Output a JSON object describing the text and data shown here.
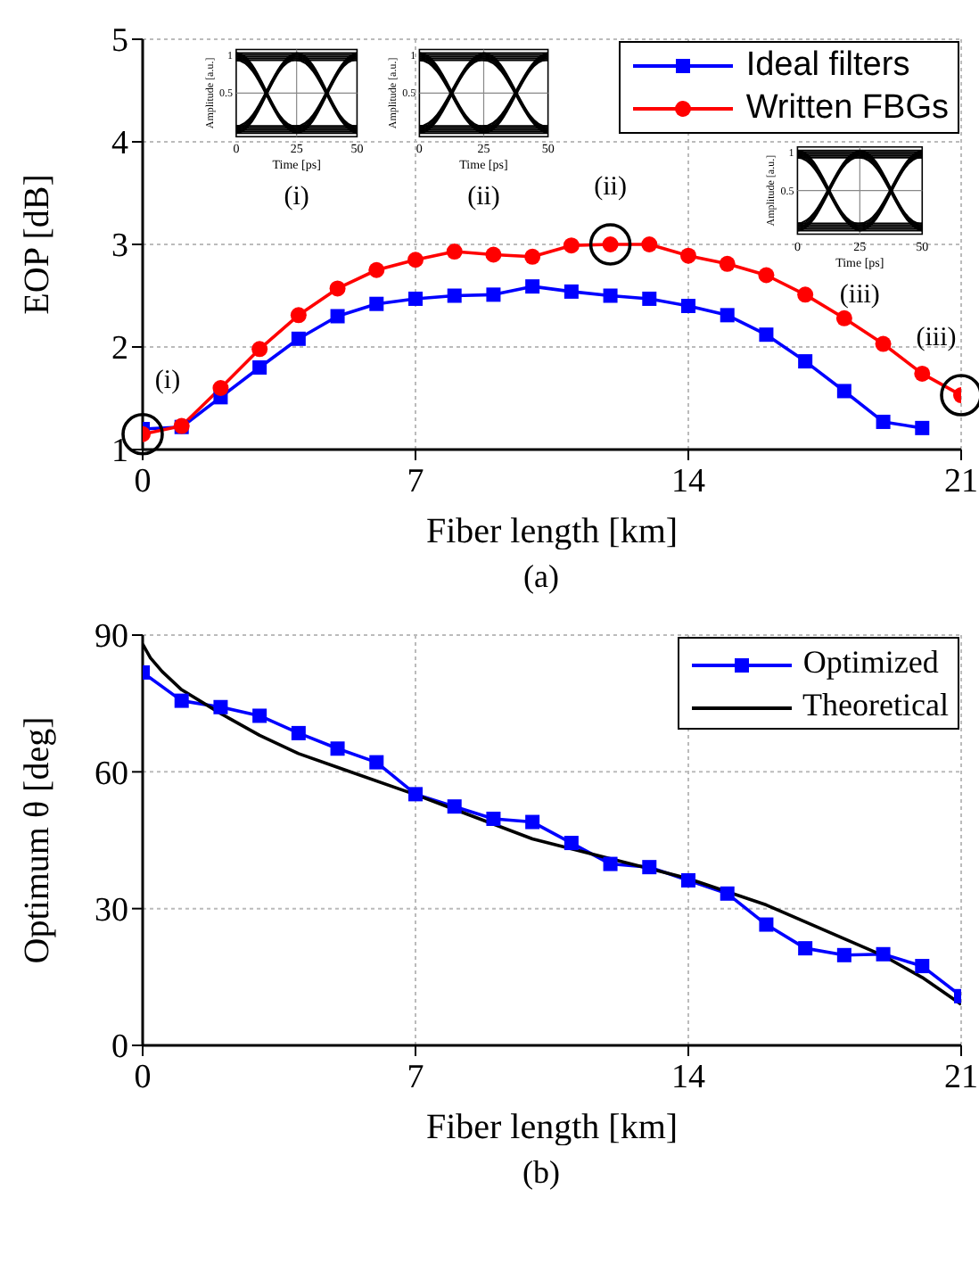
{
  "chart_data": [
    {
      "type": "line",
      "title": "(a)",
      "xlabel": "Fiber length [km]",
      "ylabel": "EOP [dB]",
      "x": [
        0,
        1,
        2,
        3,
        4,
        5,
        6,
        7,
        8,
        9,
        10,
        11,
        12,
        13,
        14,
        15,
        16,
        17,
        18,
        19,
        20,
        21
      ],
      "xlim": [
        0,
        21
      ],
      "xticks": [
        0,
        7,
        14,
        21
      ],
      "ylim": [
        1,
        5
      ],
      "yticks": [
        1,
        2,
        3,
        4,
        5
      ],
      "grid": true,
      "legend": "top right",
      "line_style": "solid",
      "series": [
        {
          "name": "Ideal filters",
          "color": "#0000ff",
          "marker": "square",
          "x": [
            0,
            1,
            2,
            3,
            4,
            5,
            6,
            7,
            8,
            9,
            10,
            11,
            12,
            13,
            14,
            15,
            16,
            17,
            18,
            19,
            20
          ],
          "values": [
            1.2,
            1.22,
            1.51,
            1.8,
            2.08,
            2.3,
            2.42,
            2.47,
            2.5,
            2.51,
            2.59,
            2.54,
            2.5,
            2.47,
            2.4,
            2.31,
            2.12,
            1.86,
            1.57,
            1.27,
            1.21
          ]
        },
        {
          "name": "Written FBGs",
          "color": "#ff0000",
          "marker": "circle",
          "values": [
            1.15,
            1.23,
            1.6,
            1.98,
            2.31,
            2.57,
            2.75,
            2.85,
            2.93,
            2.9,
            2.88,
            2.99,
            3.0,
            3.0,
            2.89,
            2.81,
            2.7,
            2.51,
            2.28,
            2.03,
            1.74,
            1.53
          ]
        }
      ],
      "annotations": [
        {
          "text": "(i)",
          "x": 0,
          "y": 1.15
        },
        {
          "text": "(ii)",
          "x": 12,
          "y": 3.0
        },
        {
          "text": "(iii)",
          "x": 21,
          "y": 1.53
        },
        "Amplitude [a.u.]",
        "Time [ps]",
        "0",
        "25",
        "50",
        "0.5",
        "1"
      ]
    },
    {
      "type": "line",
      "title": "(b)",
      "xlabel": "Fiber length [km]",
      "ylabel": "Optimum  θ [deg]",
      "xlim": [
        0,
        21
      ],
      "xticks": [
        0,
        7,
        14,
        21
      ],
      "ylim": [
        0,
        90
      ],
      "yticks": [
        0,
        30,
        60,
        90
      ],
      "grid": true,
      "legend": "top right",
      "series": [
        {
          "name": "Optimized",
          "color": "#0000ff",
          "marker": "square",
          "line_style": "solid",
          "x": [
            0,
            1,
            2,
            3,
            4,
            5,
            6,
            7,
            8,
            9,
            10,
            11,
            12,
            13,
            14,
            15,
            16,
            17,
            18,
            19,
            20,
            21
          ],
          "values": [
            81.8,
            75.6,
            74.2,
            72.3,
            68.5,
            65.1,
            62.1,
            55.1,
            52.4,
            49.7,
            49.0,
            44.4,
            39.8,
            39.1,
            36.2,
            33.3,
            26.5,
            21.3,
            19.8,
            20.0,
            17.4,
            10.8
          ]
        },
        {
          "name": "Theoretical",
          "color": "#000000",
          "marker": "none",
          "line_style": "solid",
          "x": [
            0,
            0.2,
            0.5,
            1,
            2,
            3,
            4,
            5,
            7,
            10,
            14,
            16,
            19,
            20,
            21
          ],
          "values": [
            88,
            85,
            82,
            78,
            72.8,
            68,
            64,
            61,
            55,
            45.3,
            36.6,
            30.8,
            19.7,
            14.9,
            9
          ]
        }
      ]
    }
  ]
}
